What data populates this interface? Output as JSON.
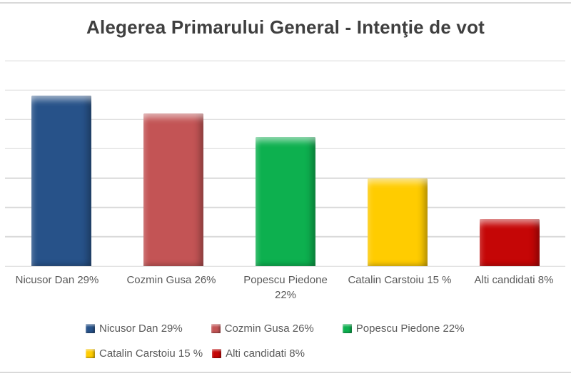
{
  "title": "Alegerea Primarului General - Intenţie de vot",
  "colors": {
    "title_text": "#3f3f3f",
    "label_text": "#595959",
    "gridline": "#d9d9d9",
    "frame": "#d9d9d9"
  },
  "chart_data": {
    "type": "bar",
    "title": "Alegerea Primarului General - Intenţie de vot",
    "categories": [
      "Nicusor Dan 29%",
      "Cozmin Gusa 26%",
      "Popescu Piedone 22%",
      "Catalin Carstoiu 15 %",
      "Alti candidati 8%"
    ],
    "category_lines": [
      [
        "Nicusor Dan 29%"
      ],
      [
        "Cozmin Gusa 26%"
      ],
      [
        "Popescu Piedone",
        "22%"
      ],
      [
        "Catalin Carstoiu 15 %"
      ],
      [
        "Alti candidati 8%"
      ]
    ],
    "values": [
      29,
      26,
      22,
      15,
      8
    ],
    "bar_colors": [
      "#275289",
      "#c35455",
      "#0db04f",
      "#ffcc00",
      "#c50606"
    ],
    "xlabel": "",
    "ylabel": "",
    "ylim": [
      0,
      35
    ],
    "grid": true,
    "grid_step": 5,
    "axis_tick_labels_visible": false,
    "legend_position": "bottom",
    "legend_rows": [
      [
        0,
        1,
        2
      ],
      [
        3,
        4
      ]
    ],
    "legend_labels": [
      "Nicusor Dan 29%",
      "Cozmin Gusa 26%",
      "Popescu Piedone 22%",
      "Catalin Carstoiu 15 %",
      "Alti candidati 8%"
    ]
  }
}
